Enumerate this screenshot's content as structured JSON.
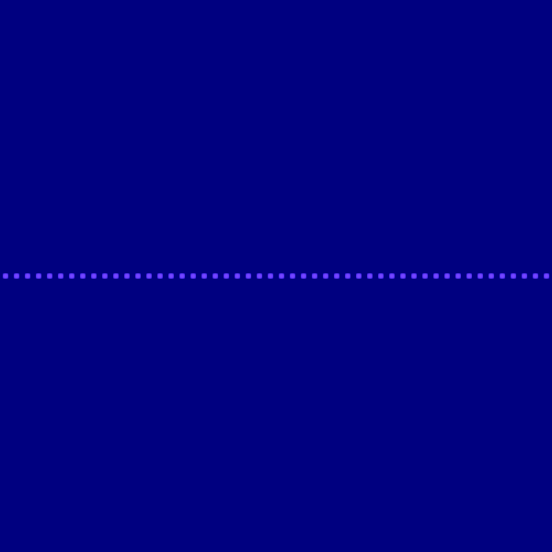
{
  "screen": {
    "background_color": "#000080"
  },
  "dotted_line": {
    "dot_color": "#6a3cff",
    "dot_glow_color": "#2a1ad0",
    "dot_count": 50
  }
}
